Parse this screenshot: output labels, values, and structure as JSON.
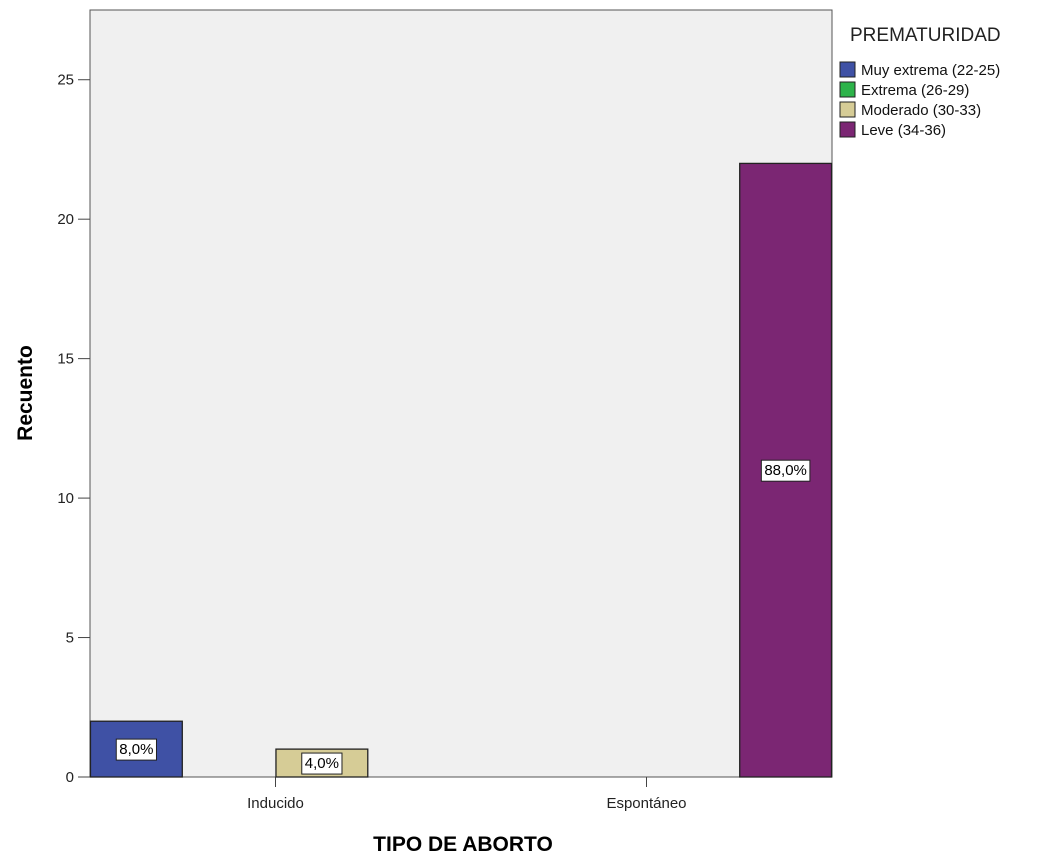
{
  "chart_data": {
    "type": "bar",
    "categories": [
      "Inducido",
      "Espontáneo"
    ],
    "series": [
      {
        "name": "Muy extrema (22-25)",
        "color": "#3f51a5",
        "values": [
          2,
          0
        ],
        "labels": [
          "8,0%",
          ""
        ]
      },
      {
        "name": "Extrema (26-29)",
        "color": "#2db34a",
        "values": [
          0,
          0
        ],
        "labels": [
          "",
          ""
        ]
      },
      {
        "name": "Moderado (30-33)",
        "color": "#d6cc96",
        "values": [
          1,
          0
        ],
        "labels": [
          "4,0%",
          ""
        ]
      },
      {
        "name": "Leve (34-36)",
        "color": "#7b2673",
        "values": [
          0,
          22
        ],
        "labels": [
          "",
          "88,0%"
        ]
      }
    ],
    "xlabel": "TIPO DE ABORTO",
    "ylabel": "Recuento",
    "ylim": [
      0,
      27.5
    ],
    "yticks": [
      0,
      5,
      10,
      15,
      20,
      25
    ],
    "legend_title": "PREMATURIDAD",
    "legend_position": "top-right, outside plot",
    "plot_background": "#f0f0f0",
    "grid": false
  }
}
